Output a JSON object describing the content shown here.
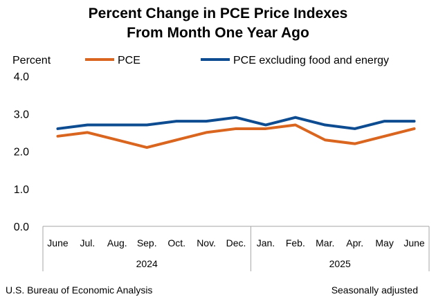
{
  "chart_data": {
    "type": "line",
    "title": [
      "Percent Change in PCE Price Indexes",
      "From Month One Year Ago"
    ],
    "ylabel": "Percent",
    "ylim": [
      0,
      4
    ],
    "yticks": [
      "0.0",
      "1.0",
      "2.0",
      "3.0",
      "4.0"
    ],
    "ytick_values": [
      0,
      1,
      2,
      3,
      4
    ],
    "categories": [
      "June",
      "Jul.",
      "Aug.",
      "Sep.",
      "Oct.",
      "Nov.",
      "Dec.",
      "Jan.",
      "Feb.",
      "Mar.",
      "Apr.",
      "May",
      "June"
    ],
    "year_groups": [
      {
        "label": "2024",
        "start": 0,
        "end": 6
      },
      {
        "label": "2025",
        "start": 7,
        "end": 12
      }
    ],
    "series": [
      {
        "name": "PCE",
        "color": "#D9651E",
        "values": [
          2.4,
          2.5,
          2.3,
          2.1,
          2.3,
          2.5,
          2.6,
          2.6,
          2.7,
          2.3,
          2.2,
          2.4,
          2.6
        ]
      },
      {
        "name": "PCE excluding food and energy",
        "color": "#0E4C92",
        "values": [
          2.6,
          2.7,
          2.7,
          2.7,
          2.8,
          2.8,
          2.9,
          2.7,
          2.9,
          2.7,
          2.6,
          2.8,
          2.8
        ]
      }
    ],
    "legend": "top",
    "grid": false,
    "source": "U.S. Bureau of Economic Analysis",
    "note": "Seasonally adjusted"
  }
}
